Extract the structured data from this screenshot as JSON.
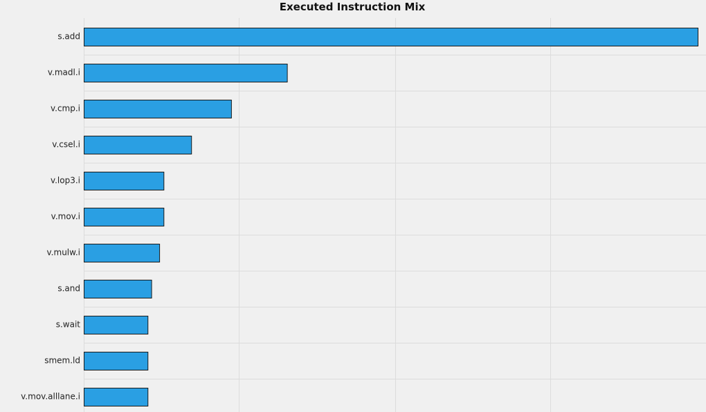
{
  "chart_data": {
    "type": "bar",
    "orientation": "horizontal",
    "title": "Executed Instruction Mix",
    "categories": [
      "s.add",
      "v.madl.i",
      "v.cmp.i",
      "v.csel.i",
      "v.lop3.i",
      "v.mov.i",
      "v.mulw.i",
      "s.and",
      "s.wait",
      "smem.ld",
      "v.mov.alllane.i"
    ],
    "values": [
      100,
      33.1,
      24,
      17.5,
      13,
      13,
      12.3,
      11,
      10.4,
      10.4,
      10.4
    ],
    "xlim": [
      0,
      100
    ],
    "x_gridlines": [
      25.3,
      50.7,
      76
    ],
    "grid": true,
    "axis_tick_labels_shown": false,
    "bar_color": "#2a9fe3",
    "bar_edge_color": "#1a1a1a",
    "background_color": "#f0f0f0",
    "grid_color": "#dcdcdc"
  }
}
